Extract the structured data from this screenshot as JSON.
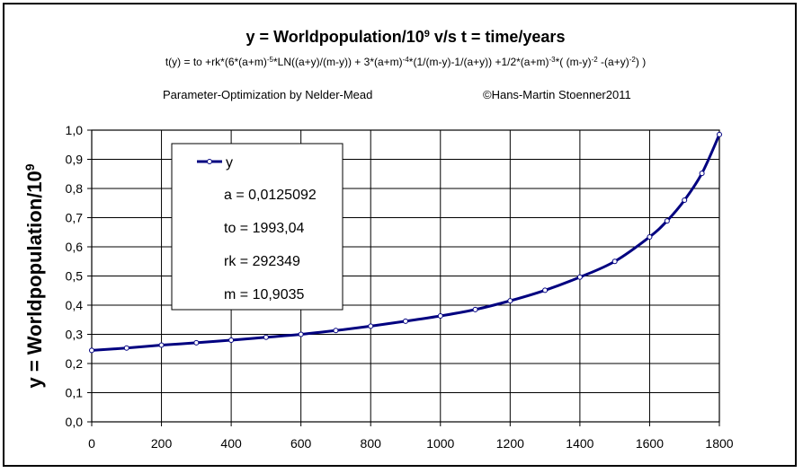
{
  "chart_data": {
    "type": "line",
    "title": {
      "prefix": "y = Worldpopulation/10",
      "sup": "9",
      "suffix": " v/s t = time/years"
    },
    "formula": [
      {
        "t": "t(y) = to +rk*(6*(a+m)",
        "s": "-5"
      },
      {
        "t": "*LN((a+y)/(m-y)) + 3*(a+m)",
        "s": "-4"
      },
      {
        "t": "*(1/(m-y)-1/(a+y)) +1/2*(a+m)",
        "s": "-3"
      },
      {
        "t": "*( (m-y)",
        "s": "-2"
      },
      {
        "t": " -(a+y)",
        "s": "-2"
      },
      {
        "t": ") )",
        "s": ""
      }
    ],
    "subtitle_left": "Parameter-Optimization by Nelder-Mead",
    "subtitle_right": "©Hans-Martin Stoenner2011",
    "ylabel": {
      "text": "y = Worldpopulation/10",
      "sup": "9"
    },
    "xlim": [
      0,
      1800
    ],
    "ylim": [
      0,
      1.0
    ],
    "xticks": [
      0,
      200,
      400,
      600,
      800,
      1000,
      1200,
      1400,
      1600,
      1800
    ],
    "xtick_labels": [
      "0",
      "200",
      "400",
      "600",
      "800",
      "1000",
      "1200",
      "1400",
      "1600",
      "1800"
    ],
    "yticks": [
      0,
      0.1,
      0.2,
      0.3,
      0.4,
      0.5,
      0.6,
      0.7,
      0.8,
      0.9,
      1.0
    ],
    "ytick_labels": [
      "0,0",
      "0,1",
      "0,2",
      "0,3",
      "0,4",
      "0,5",
      "0,6",
      "0,7",
      "0,8",
      "0,9",
      "1,0"
    ],
    "grid": true,
    "legend": {
      "placement": "upper-left",
      "series_label": "y",
      "lines": [
        "a = 0,0125092",
        "to = 1993,04",
        "rk = 292349",
        "m = 10,9035"
      ]
    },
    "series": [
      {
        "name": "y",
        "color": "#000080",
        "x": [
          0,
          100,
          200,
          300,
          400,
          500,
          600,
          700,
          800,
          900,
          1000,
          1100,
          1200,
          1300,
          1400,
          1500,
          1600,
          1650,
          1700,
          1750,
          1800
        ],
        "y": [
          0.245,
          0.253,
          0.263,
          0.271,
          0.28,
          0.29,
          0.3,
          0.313,
          0.328,
          0.345,
          0.363,
          0.385,
          0.415,
          0.451,
          0.496,
          0.55,
          0.634,
          0.689,
          0.76,
          0.852,
          0.985
        ]
      }
    ]
  }
}
